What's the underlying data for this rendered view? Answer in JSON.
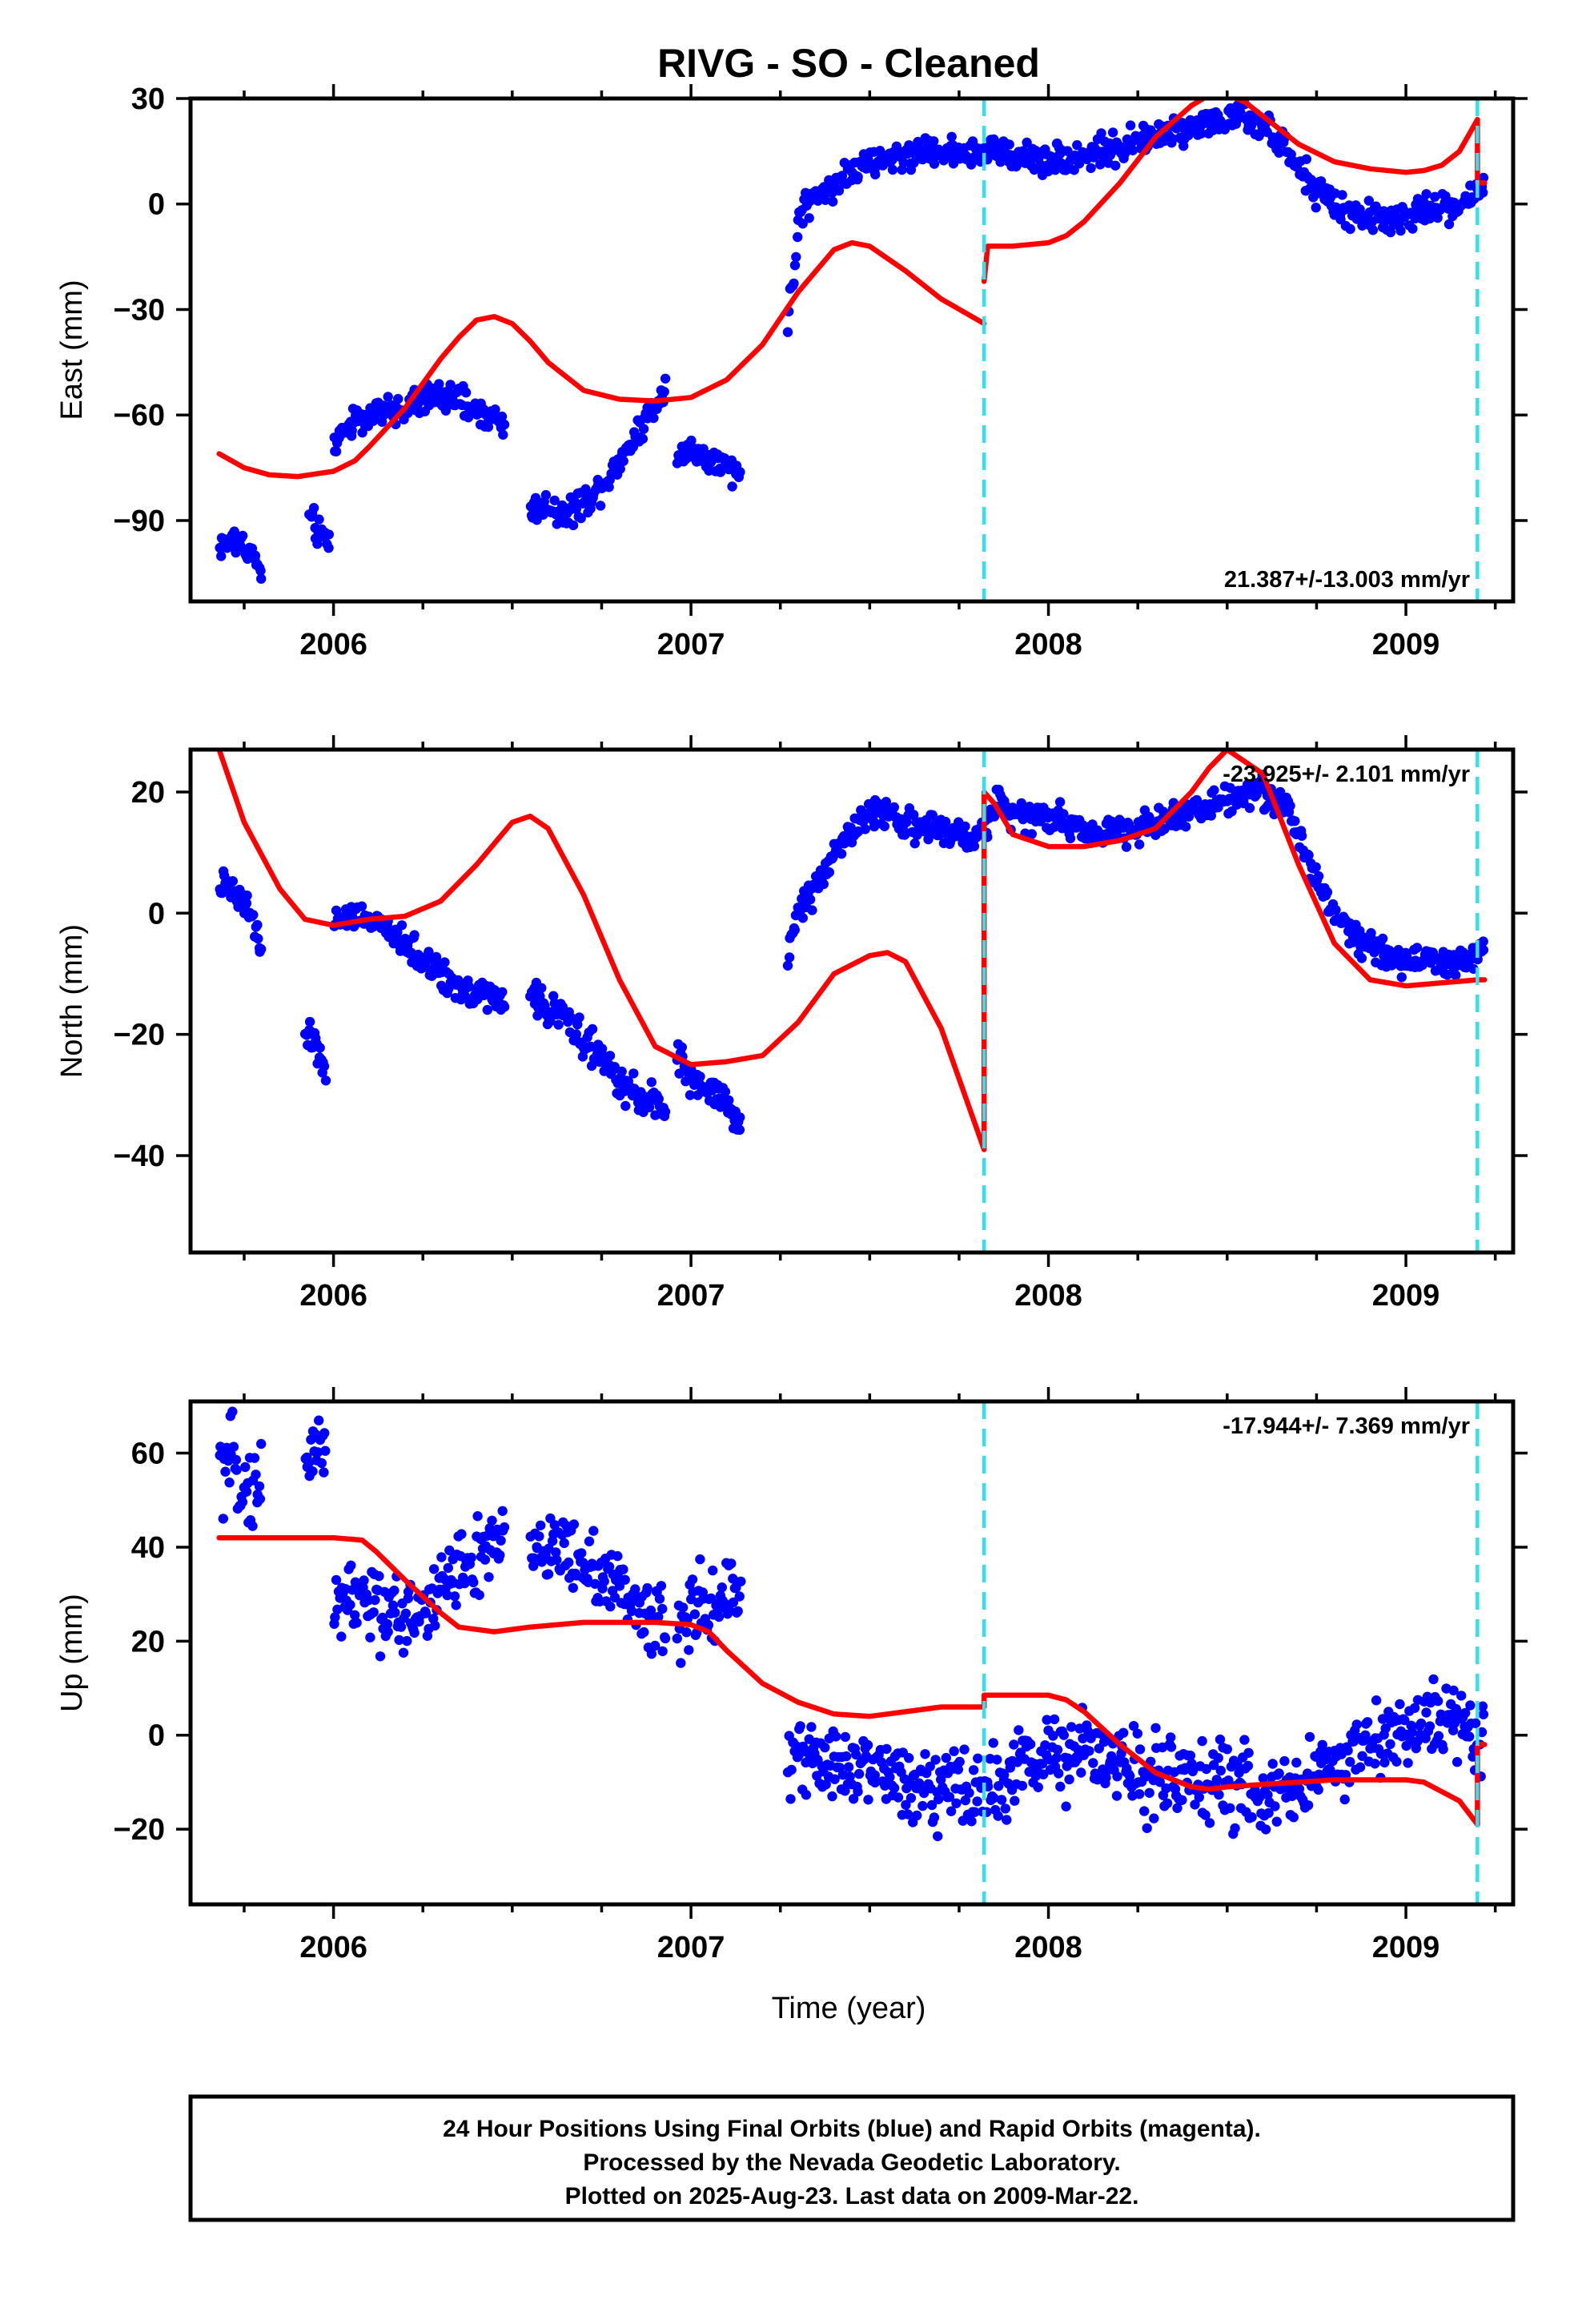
{
  "chart_data": {
    "type": "scatter",
    "title": "RIVG  - SO - Cleaned",
    "xlabel": "Time (year)",
    "xlim": [
      2005.6,
      2009.3
    ],
    "x_ticks": [
      2006,
      2007,
      2008,
      2009
    ],
    "x_tick_labels": [
      "2006",
      "2007",
      "2008",
      "2009"
    ],
    "equipment_change_years": [
      2007.82,
      2009.2
    ],
    "colors": {
      "data": "#0000ff",
      "model": "#ff0000",
      "breaks": "#33e0ee"
    },
    "panels": [
      {
        "name": "east",
        "ylabel": "East (mm)",
        "ylim": [
          -113,
          30
        ],
        "y_ticks": [
          30,
          0,
          -30,
          -60,
          -90
        ],
        "y_tick_labels": [
          "30",
          "0",
          "−30",
          "−60",
          "−90"
        ],
        "rate": "21.387+/-13.003 mm/yr",
        "rate_position": "bottom-right",
        "data_segments": [
          {
            "x": [
              2005.68,
              2005.73,
              2005.77,
              2005.8
            ],
            "y": [
              -97,
              -96,
              -99,
              -106
            ]
          },
          {
            "x": [
              2005.93,
              2005.96,
              2005.99
            ],
            "y": [
              -88,
              -94,
              -96
            ]
          },
          {
            "x": [
              2006.0,
              2006.05,
              2006.1,
              2006.15,
              2006.2,
              2006.25,
              2006.3,
              2006.35,
              2006.4,
              2006.45,
              2006.48
            ],
            "y": [
              -68,
              -62,
              -60,
              -59,
              -58,
              -56,
              -54,
              -56,
              -59,
              -61,
              -63
            ]
          },
          {
            "x": [
              2006.55,
              2006.6,
              2006.65,
              2006.7,
              2006.75,
              2006.8,
              2006.85,
              2006.9,
              2006.93
            ],
            "y": [
              -87,
              -86,
              -88,
              -85,
              -80,
              -73,
              -65,
              -57,
              -52
            ]
          },
          {
            "x": [
              2006.96,
              2007.0,
              2007.05,
              2007.1,
              2007.14
            ],
            "y": [
              -70,
              -70,
              -73,
              -75,
              -78
            ]
          },
          {
            "x": [
              2007.27,
              2007.29,
              2007.3,
              2007.32,
              2007.35,
              2007.4,
              2007.45,
              2007.5,
              2007.55,
              2007.6,
              2007.65,
              2007.7,
              2007.75,
              2007.8,
              2007.85,
              2007.9,
              2007.95,
              2008.0,
              2008.05,
              2008.1,
              2008.15,
              2008.2,
              2008.25,
              2008.3,
              2008.35,
              2008.4,
              2008.45,
              2008.5,
              2008.55,
              2008.6,
              2008.65,
              2008.7,
              2008.75,
              2008.8,
              2008.85,
              2008.9,
              2008.95,
              2009.0,
              2009.05,
              2009.1,
              2009.15,
              2009.18,
              2009.2,
              2009.22
            ],
            "y": [
              -32,
              -20,
              -4,
              0,
              2,
              6,
              9,
              11,
              13,
              14,
              15,
              15,
              15,
              15,
              15,
              14,
              13,
              13,
              13,
              14,
              15,
              16,
              18,
              19,
              21,
              22,
              23,
              24,
              24,
              22,
              17,
              10,
              4,
              -1,
              -3,
              -4,
              -4,
              -4,
              -2,
              -1,
              0,
              1,
              3,
              6
            ]
          }
        ],
        "model_segments": [
          {
            "x": [
              2005.68,
              2005.75,
              2005.82,
              2005.9,
              2006.0,
              2006.06,
              2006.1,
              2006.2,
              2006.3,
              2006.35,
              2006.4,
              2006.45,
              2006.5,
              2006.55,
              2006.6,
              2006.7,
              2006.8,
              2006.9,
              2007.0,
              2007.1,
              2007.2,
              2007.3,
              2007.4,
              2007.45,
              2007.5,
              2007.6,
              2007.7,
              2007.82
            ],
            "y": [
              -71,
              -75,
              -77,
              -77.5,
              -76,
              -73,
              -69,
              -58,
              -44,
              -38,
              -33,
              -32,
              -34,
              -39,
              -45,
              -53,
              -55.5,
              -56,
              -55,
              -50,
              -40,
              -25,
              -13,
              -11,
              -12,
              -19,
              -27,
              -34
            ]
          },
          {
            "x": [
              2007.82,
              2007.83,
              2007.9,
              2008.0,
              2008.05,
              2008.1,
              2008.2,
              2008.3,
              2008.4,
              2008.45,
              2008.5,
              2008.55,
              2008.6,
              2008.7,
              2008.8,
              2008.9,
              2009.0,
              2009.05,
              2009.1,
              2009.15,
              2009.2
            ],
            "y": [
              -22,
              -12,
              -12,
              -11,
              -9,
              -5,
              6,
              19,
              28,
              31,
              31,
              29,
              25,
              17,
              12,
              10,
              9,
              9.5,
              11,
              15,
              24
            ]
          },
          {
            "x": [
              2009.2,
              2009.2,
              2009.22
            ],
            "y": [
              24,
              6,
              6
            ]
          }
        ]
      },
      {
        "name": "north",
        "ylabel": "North (mm)",
        "ylim": [
          -56,
          27
        ],
        "y_ticks": [
          20,
          0,
          -20,
          -40
        ],
        "y_tick_labels": [
          "20",
          "0",
          "−20",
          "−40"
        ],
        "rate": "-23.925+/- 2.101 mm/yr",
        "rate_position": "top-right",
        "data_segments": [
          {
            "x": [
              2005.68,
              2005.72,
              2005.76,
              2005.8
            ],
            "y": [
              5,
              3,
              1,
              -6
            ]
          },
          {
            "x": [
              2005.92,
              2005.95,
              2005.98
            ],
            "y": [
              -20,
              -22,
              -26
            ]
          },
          {
            "x": [
              2006.0,
              2006.05,
              2006.1,
              2006.15,
              2006.2,
              2006.25,
              2006.3,
              2006.35,
              2006.4,
              2006.45,
              2006.48
            ],
            "y": [
              -2,
              0,
              -1,
              -3,
              -5,
              -8,
              -10,
              -12,
              -13,
              -14,
              -15
            ]
          },
          {
            "x": [
              2006.55,
              2006.6,
              2006.65,
              2006.7,
              2006.75,
              2006.8,
              2006.85,
              2006.9,
              2006.93
            ],
            "y": [
              -13,
              -16,
              -17,
              -21,
              -24,
              -28,
              -30,
              -31,
              -33
            ]
          },
          {
            "x": [
              2006.96,
              2007.0,
              2007.05,
              2007.1,
              2007.14
            ],
            "y": [
              -24,
              -27,
              -29,
              -31,
              -36
            ]
          },
          {
            "x": [
              2007.27,
              2007.29,
              2007.3,
              2007.35,
              2007.4,
              2007.45,
              2007.5,
              2007.55,
              2007.6,
              2007.65,
              2007.7,
              2007.75,
              2007.8,
              2007.85,
              2007.9,
              2007.95,
              2008.0,
              2008.05,
              2008.1,
              2008.15,
              2008.2,
              2008.25,
              2008.3,
              2008.35,
              2008.4,
              2008.45,
              2008.5,
              2008.55,
              2008.6,
              2008.65,
              2008.7,
              2008.75,
              2008.8,
              2008.85,
              2008.9,
              2008.95,
              2009.0,
              2009.05,
              2009.1,
              2009.15,
              2009.2,
              2009.22
            ],
            "y": [
              -8,
              -2,
              0,
              5,
              10,
              14,
              16,
              17,
              15,
              14,
              13,
              13,
              12,
              18,
              17,
              16,
              16,
              15,
              14,
              13,
              14,
              14,
              15,
              16,
              17,
              18,
              19,
              20,
              20,
              18,
              13,
              6,
              0,
              -3,
              -5,
              -7,
              -8,
              -8,
              -8,
              -8,
              -7,
              -6
            ]
          }
        ],
        "model_segments": [
          {
            "x": [
              2005.68,
              2005.75,
              2005.85,
              2005.92,
              2006.0,
              2006.1,
              2006.2,
              2006.3,
              2006.4,
              2006.5,
              2006.55,
              2006.6,
              2006.7,
              2006.8,
              2006.9,
              2007.0,
              2007.1,
              2007.2,
              2007.3,
              2007.4,
              2007.5,
              2007.55,
              2007.6,
              2007.7,
              2007.82
            ],
            "y": [
              27,
              15,
              4,
              -1,
              -2,
              -1,
              -0.5,
              2,
              8,
              15,
              16,
              14,
              3,
              -11,
              -22,
              -25,
              -24.5,
              -23.5,
              -18,
              -10,
              -7,
              -6.5,
              -8,
              -19,
              -39
            ]
          },
          {
            "x": [
              2007.82,
              2007.82,
              2007.85,
              2007.9,
              2008.0,
              2008.1,
              2008.2,
              2008.3,
              2008.4,
              2008.45,
              2008.5,
              2008.6,
              2008.7,
              2008.8,
              2008.9,
              2009.0,
              2009.1,
              2009.2,
              2009.22
            ],
            "y": [
              -39,
              20,
              18,
              13,
              11,
              11,
              12,
              14,
              20,
              24,
              27,
              23,
              8,
              -5,
              -11,
              -12,
              -11.5,
              -11,
              -11
            ]
          }
        ]
      },
      {
        "name": "up",
        "ylabel": "Up (mm)",
        "ylim": [
          -36,
          71
        ],
        "y_ticks": [
          60,
          40,
          20,
          0,
          -20
        ],
        "y_tick_labels": [
          "60",
          "40",
          "20",
          "0",
          "−20"
        ],
        "rate": "-17.944+/- 7.369 mm/yr",
        "rate_position": "top-right",
        "data_segments": [
          {
            "x": [
              2005.68,
              2005.72,
              2005.76,
              2005.8
            ],
            "y": [
              56,
              58,
              52,
              54
            ]
          },
          {
            "x": [
              2005.92,
              2005.95,
              2005.98
            ],
            "y": [
              58,
              63,
              60
            ]
          },
          {
            "x": [
              2006.0,
              2006.05,
              2006.1,
              2006.15,
              2006.2,
              2006.25,
              2006.3,
              2006.35,
              2006.4,
              2006.45,
              2006.48
            ],
            "y": [
              28,
              29,
              28,
              26,
              25,
              27,
              32,
              35,
              37,
              39,
              40
            ]
          },
          {
            "x": [
              2006.55,
              2006.6,
              2006.65,
              2006.7,
              2006.75,
              2006.8,
              2006.85,
              2006.9,
              2006.93
            ],
            "y": [
              41,
              40,
              38,
              37,
              34,
              31,
              28,
              26,
              25
            ]
          },
          {
            "x": [
              2006.96,
              2007.0,
              2007.05,
              2007.1,
              2007.14
            ],
            "y": [
              22,
              26,
              28,
              30,
              31
            ]
          },
          {
            "x": [
              2007.27,
              2007.3,
              2007.35,
              2007.4,
              2007.45,
              2007.5,
              2007.55,
              2007.6,
              2007.65,
              2007.7,
              2007.75,
              2007.8,
              2007.85,
              2007.9,
              2007.95,
              2008.0,
              2008.05,
              2008.1,
              2008.15,
              2008.2,
              2008.25,
              2008.3,
              2008.35,
              2008.4,
              2008.45,
              2008.5,
              2008.55,
              2008.6,
              2008.65,
              2008.7,
              2008.75,
              2008.8,
              2008.85,
              2008.9,
              2008.95,
              2009.0,
              2009.05,
              2009.1,
              2009.15,
              2009.2,
              2009.22
            ],
            "y": [
              -3,
              -4,
              -6,
              -6,
              -7,
              -8,
              -8,
              -9,
              -10,
              -11,
              -11,
              -12,
              -10,
              -9,
              -7,
              -5,
              -4,
              -2,
              -6,
              -7,
              -8,
              -8,
              -8,
              -9,
              -10,
              -11,
              -12,
              -13,
              -12,
              -10,
              -8,
              -7,
              -4,
              -2,
              0,
              1,
              2,
              3,
              3,
              2,
              -1
            ]
          }
        ],
        "model_segments": [
          {
            "x": [
              2005.68,
              2005.8,
              2005.9,
              2006.0,
              2006.08,
              2006.12,
              2006.2,
              2006.3,
              2006.35,
              2006.45,
              2006.55,
              2006.7,
              2006.8,
              2006.9,
              2007.0,
              2007.05,
              2007.1,
              2007.2,
              2007.3,
              2007.4,
              2007.5,
              2007.55,
              2007.6,
              2007.7,
              2007.82
            ],
            "y": [
              42,
              42,
              42,
              42,
              41.5,
              39,
              33,
              26,
              23,
              22,
              23,
              24,
              24,
              24,
              23.5,
              22,
              18,
              11,
              7,
              4.5,
              4,
              4.5,
              5,
              6,
              6
            ]
          },
          {
            "x": [
              2007.82,
              2007.82,
              2007.9,
              2008.0,
              2008.05,
              2008.1,
              2008.2,
              2008.3,
              2008.4,
              2008.45,
              2008.5,
              2008.6,
              2008.7,
              2008.8,
              2008.9,
              2009.0,
              2009.05,
              2009.1,
              2009.15,
              2009.2
            ],
            "y": [
              6,
              8.5,
              8.5,
              8.5,
              7.5,
              5,
              -2,
              -8,
              -11,
              -11.5,
              -11,
              -10.5,
              -10,
              -9.5,
              -9.5,
              -9.5,
              -10,
              -12,
              -14,
              -19
            ]
          },
          {
            "x": [
              2009.2,
              2009.2,
              2009.22
            ],
            "y": [
              -19,
              -2,
              -2
            ]
          }
        ]
      }
    ]
  },
  "footer": {
    "line1": "24 Hour Positions Using Final Orbits (blue) and Rapid Orbits (magenta).",
    "line2": "Processed by the Nevada Geodetic Laboratory.",
    "line3": "Plotted on 2025-Aug-23. Last data on 2009-Mar-22."
  }
}
